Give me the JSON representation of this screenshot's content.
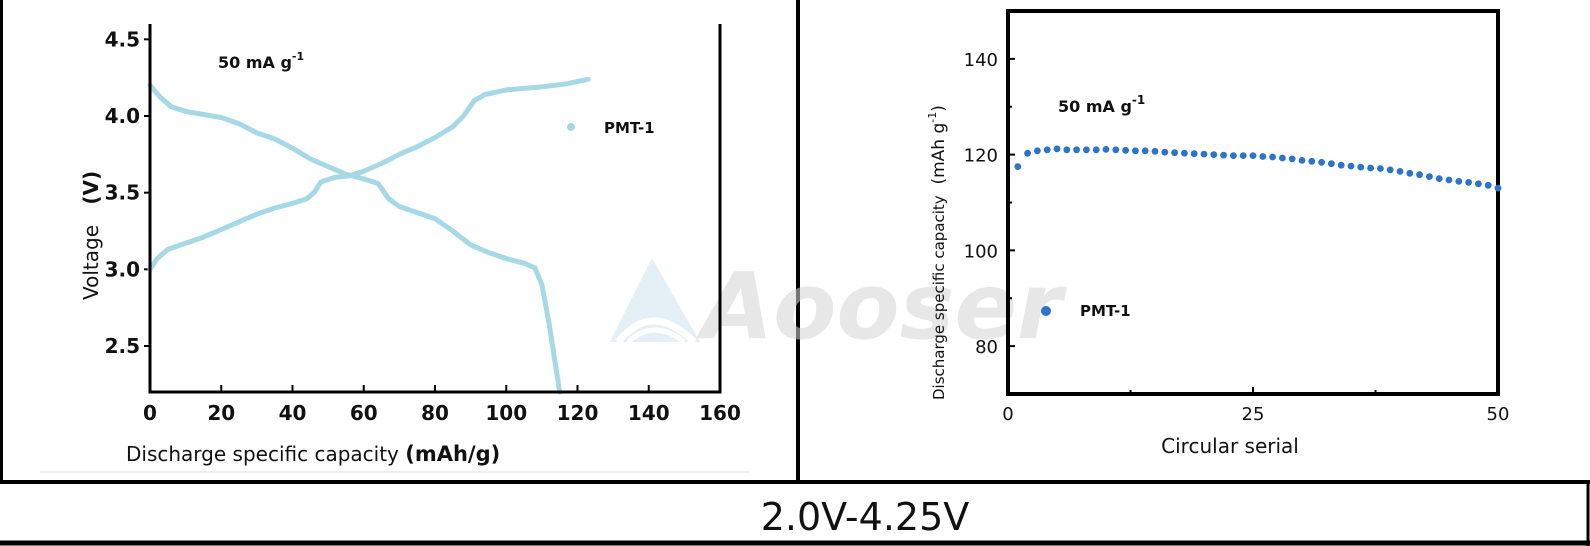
{
  "footer": {
    "caption": "2.0V-4.25V"
  },
  "watermark": "Aooser",
  "colors": {
    "left_series": "#a6d8e6",
    "right_series": "#2c74c8",
    "frame": "#000000"
  },
  "chart_data": [
    {
      "type": "line",
      "annotation_main": "50 mA g",
      "annotation_sup": "-1",
      "xlabel_main": "Discharge specific capacity",
      "xlabel_unit": "(mAh/g)",
      "ylabel_main": "Voltage",
      "ylabel_unit": "(V)",
      "xlim": [
        0,
        160
      ],
      "ylim": [
        2.2,
        4.6
      ],
      "xticks": [
        0,
        20,
        40,
        60,
        80,
        100,
        120,
        140,
        160
      ],
      "yticks": [
        2.5,
        3.0,
        3.5,
        4.0,
        4.5
      ],
      "ytick_labels": [
        "2.5",
        "3.0",
        "3.5",
        "4.0",
        "4.5"
      ],
      "legend": "top-right",
      "series": [
        {
          "name": "PMT-1",
          "role": "charge",
          "points": [
            [
              0,
              3.0
            ],
            [
              2,
              3.07
            ],
            [
              5,
              3.13
            ],
            [
              10,
              3.17
            ],
            [
              15,
              3.21
            ],
            [
              20,
              3.26
            ],
            [
              25,
              3.31
            ],
            [
              30,
              3.36
            ],
            [
              35,
              3.4
            ],
            [
              40,
              3.43
            ],
            [
              44,
              3.46
            ],
            [
              46,
              3.5
            ],
            [
              48,
              3.57
            ],
            [
              52,
              3.6
            ],
            [
              56,
              3.61
            ],
            [
              60,
              3.64
            ],
            [
              65,
              3.69
            ],
            [
              70,
              3.75
            ],
            [
              75,
              3.8
            ],
            [
              80,
              3.86
            ],
            [
              85,
              3.93
            ],
            [
              88,
              4.0
            ],
            [
              91,
              4.1
            ],
            [
              94,
              4.14
            ],
            [
              100,
              4.17
            ],
            [
              110,
              4.19
            ],
            [
              117,
              4.21
            ],
            [
              123,
              4.24
            ]
          ]
        },
        {
          "name": "PMT-1",
          "role": "discharge",
          "points": [
            [
              0,
              4.2
            ],
            [
              3,
              4.12
            ],
            [
              6,
              4.06
            ],
            [
              10,
              4.03
            ],
            [
              15,
              4.01
            ],
            [
              20,
              3.99
            ],
            [
              25,
              3.95
            ],
            [
              30,
              3.89
            ],
            [
              35,
              3.85
            ],
            [
              40,
              3.79
            ],
            [
              45,
              3.72
            ],
            [
              50,
              3.67
            ],
            [
              55,
              3.62
            ],
            [
              60,
              3.59
            ],
            [
              64,
              3.56
            ],
            [
              67,
              3.46
            ],
            [
              70,
              3.41
            ],
            [
              75,
              3.37
            ],
            [
              80,
              3.33
            ],
            [
              85,
              3.25
            ],
            [
              90,
              3.16
            ],
            [
              95,
              3.11
            ],
            [
              100,
              3.07
            ],
            [
              105,
              3.04
            ],
            [
              108,
              3.01
            ],
            [
              110,
              2.9
            ],
            [
              112,
              2.65
            ],
            [
              114,
              2.35
            ],
            [
              115,
              2.2
            ]
          ]
        }
      ]
    },
    {
      "type": "scatter",
      "annotation_main": "50 mA g",
      "annotation_sup": "-1",
      "xlabel": "Circular serial",
      "ylabel_main": "Discharge specific capacity",
      "ylabel_unit": "(mAh g",
      "ylabel_unit_sup": "-1",
      "ylabel_unit_close": ")",
      "xlim": [
        0,
        50
      ],
      "ylim": [
        70,
        150
      ],
      "xticks": [
        0,
        25,
        50
      ],
      "yticks": [
        80,
        100,
        120,
        140
      ],
      "legend": "lower-left",
      "series": [
        {
          "name": "PMT-1",
          "x": [
            1,
            2,
            3,
            4,
            5,
            6,
            7,
            8,
            9,
            10,
            11,
            12,
            13,
            14,
            15,
            16,
            17,
            18,
            19,
            20,
            21,
            22,
            23,
            24,
            25,
            26,
            27,
            28,
            29,
            30,
            31,
            32,
            33,
            34,
            35,
            36,
            37,
            38,
            39,
            40,
            41,
            42,
            43,
            44,
            45,
            46,
            47,
            48,
            49,
            50
          ],
          "y": [
            117.5,
            120.3,
            120.8,
            121.0,
            121.2,
            121.0,
            121.0,
            121.0,
            121.0,
            121.1,
            121.0,
            120.9,
            120.8,
            120.8,
            120.7,
            120.5,
            120.4,
            120.3,
            120.2,
            120.1,
            120.0,
            119.9,
            119.8,
            119.8,
            119.8,
            119.6,
            119.5,
            119.3,
            119.1,
            118.8,
            118.6,
            118.4,
            118.1,
            117.8,
            117.6,
            117.4,
            117.2,
            117.1,
            116.8,
            116.5,
            116.1,
            115.8,
            115.4,
            115.0,
            114.7,
            114.4,
            114.2,
            113.9,
            113.6,
            113.0
          ]
        }
      ]
    }
  ]
}
